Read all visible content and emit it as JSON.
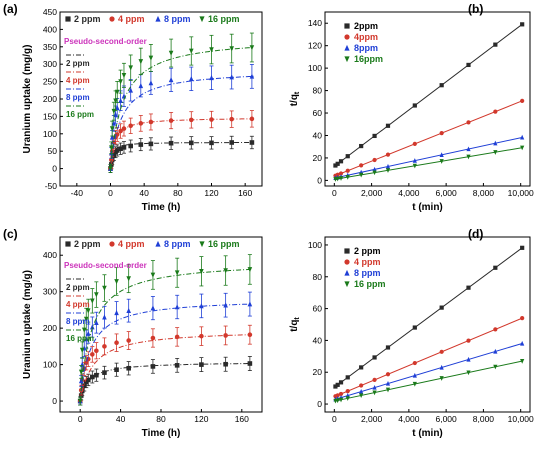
{
  "figure": {
    "colors": {
      "s2": "#2a2a2a",
      "s4": "#d2382c",
      "s8": "#1f3fd6",
      "s16": "#1a7a1a",
      "pso": "#cc33bb"
    },
    "panels": [
      {
        "label": "(a)",
        "xlabel": "Time (h)",
        "ylabel": "Uranium uptake (mg/g)",
        "xticks": [
          "-40",
          "0",
          "40",
          "80",
          "120",
          "160"
        ],
        "yticks": [
          "-50",
          "0",
          "50",
          "100",
          "150",
          "200",
          "250",
          "300",
          "350",
          "400",
          "450"
        ],
        "legend": [
          "2 ppm",
          "4 ppm",
          "8 ppm",
          "16 ppm"
        ],
        "pso_title": "Pseudo-second-order",
        "pso_items": [
          "2 ppm",
          "4 ppm",
          "8 ppm",
          "16 ppm"
        ]
      },
      {
        "label": "(b)",
        "xlabel": "t (min)",
        "ylabel": "t/q",
        "ysub": "t",
        "xticks": [
          "0",
          "2,000",
          "4,000",
          "6,000",
          "8,000",
          "10,000"
        ],
        "yticks": [
          "0",
          "20",
          "40",
          "60",
          "80",
          "100",
          "120",
          "140"
        ],
        "legend": [
          "2ppm",
          "4ppm",
          "8ppm",
          "16ppm"
        ]
      },
      {
        "label": "(c)",
        "xlabel": "Time (h)",
        "ylabel": "Uranium uptake (mg/g)",
        "xticks": [
          "0",
          "40",
          "80",
          "120",
          "160"
        ],
        "yticks": [
          "0",
          "100",
          "200",
          "300",
          "400"
        ],
        "legend": [
          "2 ppm",
          "4 ppm",
          "8 ppm",
          "16 ppm"
        ],
        "pso_title": "Pseudo-second-order",
        "pso_items": [
          "2 ppm",
          "4 ppm",
          "8 ppm",
          "16 ppm"
        ]
      },
      {
        "label": "(d)",
        "xlabel": "t (min)",
        "ylabel": "t/q",
        "ysub": "t",
        "xticks": [
          "0",
          "2,000",
          "4,000",
          "6,000",
          "8,000",
          "10,000"
        ],
        "yticks": [
          "0",
          "20",
          "40",
          "60",
          "80",
          "100"
        ],
        "legend": [
          "2 ppm",
          "4 ppm",
          "8 ppm",
          "16 ppm"
        ]
      }
    ]
  },
  "chart_data": [
    {
      "type": "scatter",
      "panel": "(a)",
      "xlabel": "Time (h)",
      "ylabel": "Uranium uptake (mg/g)",
      "xlim": [
        -60,
        180
      ],
      "ylim": [
        -50,
        450
      ],
      "x": [
        0,
        1,
        2,
        4,
        6,
        8,
        12,
        16,
        24,
        36,
        48,
        72,
        96,
        120,
        144,
        168
      ],
      "series": [
        {
          "name": "2 ppm",
          "qe": 76,
          "values": [
            0,
            12,
            25,
            38,
            47,
            52,
            57,
            61,
            65,
            69,
            71,
            73,
            74,
            74,
            75,
            75
          ]
        },
        {
          "name": "4 ppm",
          "qe": 147,
          "values": [
            0,
            25,
            50,
            75,
            90,
            98,
            108,
            115,
            123,
            130,
            134,
            138,
            140,
            141,
            142,
            143
          ]
        },
        {
          "name": "8 ppm",
          "qe": 285,
          "values": [
            0,
            45,
            90,
            130,
            155,
            175,
            195,
            208,
            225,
            238,
            246,
            255,
            258,
            261,
            263,
            265
          ]
        },
        {
          "name": "16 ppm",
          "qe": 378,
          "values": [
            0,
            60,
            115,
            165,
            195,
            220,
            250,
            268,
            290,
            308,
            318,
            332,
            338,
            342,
            345,
            348
          ]
        }
      ]
    },
    {
      "type": "scatter",
      "panel": "(b)",
      "xlabel": "t (min)",
      "ylabel": "t/qt",
      "xlim": [
        -500,
        10500
      ],
      "ylim": [
        -5,
        150
      ],
      "x": [
        60,
        180,
        360,
        720,
        1440,
        2160,
        2880,
        4320,
        5760,
        7200,
        8640,
        10080
      ],
      "series": [
        {
          "name": "2ppm",
          "intercept": 12.5,
          "slope": 0.01255
        },
        {
          "name": "4ppm",
          "intercept": 3.8,
          "slope": 0.00665
        },
        {
          "name": "8ppm",
          "intercept": 2.0,
          "slope": 0.0036
        },
        {
          "name": "16ppm",
          "intercept": 0.9,
          "slope": 0.0028
        }
      ]
    },
    {
      "type": "scatter",
      "panel": "(c)",
      "xlabel": "Time (h)",
      "ylabel": "Uranium uptake (mg/g)",
      "xlim": [
        -20,
        180
      ],
      "ylim": [
        -30,
        450
      ],
      "x": [
        0,
        1,
        2,
        4,
        6,
        8,
        12,
        16,
        24,
        36,
        48,
        72,
        96,
        120,
        144,
        168
      ],
      "series": [
        {
          "name": "2 ppm",
          "qe": 108,
          "values": [
            0,
            15,
            28,
            42,
            52,
            58,
            66,
            71,
            78,
            86,
            90,
            95,
            98,
            100,
            101,
            103
          ]
        },
        {
          "name": "4 ppm",
          "qe": 196,
          "values": [
            0,
            30,
            58,
            88,
            105,
            115,
            128,
            138,
            150,
            160,
            166,
            173,
            176,
            178,
            180,
            182
          ]
        },
        {
          "name": "8 ppm",
          "qe": 282,
          "values": [
            0,
            55,
            100,
            145,
            170,
            185,
            203,
            215,
            230,
            242,
            248,
            255,
            258,
            261,
            263,
            266
          ]
        },
        {
          "name": "16 ppm",
          "qe": 385,
          "values": [
            0,
            80,
            140,
            195,
            225,
            248,
            275,
            292,
            310,
            328,
            336,
            346,
            352,
            356,
            358,
            361
          ]
        }
      ]
    },
    {
      "type": "scatter",
      "panel": "(d)",
      "xlabel": "t (min)",
      "ylabel": "t/qt",
      "xlim": [
        -500,
        10500
      ],
      "ylim": [
        -5,
        105
      ],
      "x": [
        60,
        180,
        360,
        720,
        1440,
        2160,
        2880,
        4320,
        5760,
        7200,
        8640,
        10080
      ],
      "series": [
        {
          "name": "2 ppm",
          "intercept": 10.5,
          "slope": 0.0087
        },
        {
          "name": "4 ppm",
          "intercept": 4.6,
          "slope": 0.0049
        },
        {
          "name": "8 ppm",
          "intercept": 2.8,
          "slope": 0.0035
        },
        {
          "name": "16 ppm",
          "intercept": 1.8,
          "slope": 0.0025
        }
      ]
    }
  ]
}
